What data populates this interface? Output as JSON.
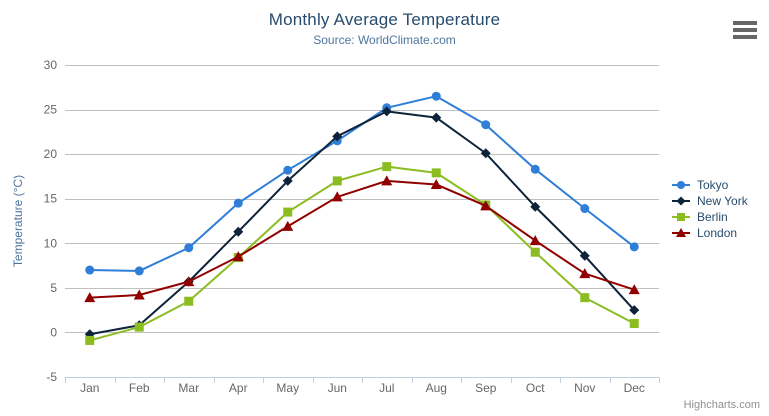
{
  "chart_data": {
    "type": "line",
    "title": "Monthly Average Temperature",
    "subtitle": "Source: WorldClimate.com",
    "categories": [
      "Jan",
      "Feb",
      "Mar",
      "Apr",
      "May",
      "Jun",
      "Jul",
      "Aug",
      "Sep",
      "Oct",
      "Nov",
      "Dec"
    ],
    "series": [
      {
        "name": "Tokyo",
        "color": "#2f7ed8",
        "marker": "circle",
        "values": [
          7.0,
          6.9,
          9.5,
          14.5,
          18.2,
          21.5,
          25.2,
          26.5,
          23.3,
          18.3,
          13.9,
          9.6
        ]
      },
      {
        "name": "New York",
        "color": "#0d233a",
        "marker": "diamond",
        "values": [
          -0.2,
          0.8,
          5.7,
          11.3,
          17.0,
          22.0,
          24.8,
          24.1,
          20.1,
          14.1,
          8.6,
          2.5
        ]
      },
      {
        "name": "Berlin",
        "color": "#8bbc21",
        "marker": "square",
        "values": [
          -0.9,
          0.6,
          3.5,
          8.4,
          13.5,
          17.0,
          18.6,
          17.9,
          14.3,
          9.0,
          3.9,
          1.0
        ]
      },
      {
        "name": "London",
        "color": "#910000",
        "marker": "triangle",
        "values": [
          3.9,
          4.2,
          5.7,
          8.5,
          11.9,
          15.2,
          17.0,
          16.6,
          14.2,
          10.3,
          6.6,
          4.8
        ]
      }
    ],
    "xlabel": "",
    "ylabel": "Temperature (°C)",
    "ylim": [
      -5,
      30
    ],
    "yticks": [
      30,
      25,
      20,
      15,
      10,
      5,
      0,
      -5
    ],
    "grid": true,
    "legend_position": "right"
  },
  "ui": {
    "credit": "Highcharts.com",
    "colors": {
      "title": "#274b6d",
      "subtitle": "#4d759e",
      "axis_title": "#4d759e",
      "axis_labels": "#666666",
      "grid_line": "#c0c0c0",
      "axis_line": "#c0d0e0",
      "legend_text": "#274b6d",
      "credit_text": "#909090",
      "menu_icon": "#666666",
      "background": "#ffffff"
    }
  }
}
